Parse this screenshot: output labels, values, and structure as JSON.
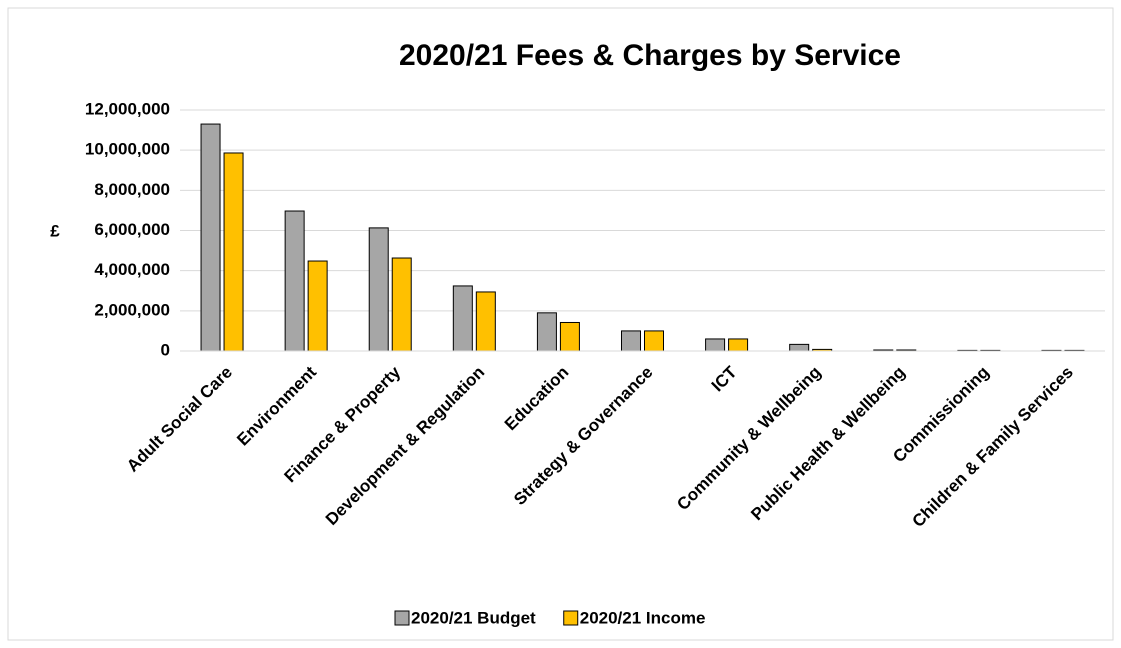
{
  "chart_data": {
    "type": "bar",
    "title": "2020/21 Fees & Charges by Service",
    "y_label": "£",
    "categories": [
      "Adult Social Care",
      "Environment",
      "Finance & Property",
      "Development & Regulation",
      "Education",
      "Strategy & Governance",
      "ICT",
      "Community & Wellbeing",
      "Public Health & Wellbeing",
      "Commissioning",
      "Children & Family Services"
    ],
    "series": [
      {
        "name": "2020/21 Budget",
        "color": "#a6a6a6",
        "values": [
          11300000,
          6970000,
          6130000,
          3240000,
          1900000,
          1000000,
          600000,
          330000,
          50000,
          30000,
          30000
        ]
      },
      {
        "name": "2020/21 Income",
        "color": "#ffc000",
        "values": [
          9860000,
          4480000,
          4630000,
          2940000,
          1420000,
          1000000,
          600000,
          80000,
          50000,
          30000,
          30000
        ]
      }
    ],
    "ylim": [
      0,
      12000000
    ],
    "yticks": [
      0,
      {
        "value": 2000000,
        "label": "2,000,000"
      },
      {
        "value": 4000000,
        "label": "4,000,000"
      },
      {
        "value": 6000000,
        "label": "6,000,000"
      },
      {
        "value": 8000000,
        "label": "8,000,000"
      },
      {
        "value": 10000000,
        "label": "10,000,000"
      },
      {
        "value": 12000000,
        "label": "12,000,000"
      }
    ],
    "grid": true,
    "legend": "bottom"
  }
}
